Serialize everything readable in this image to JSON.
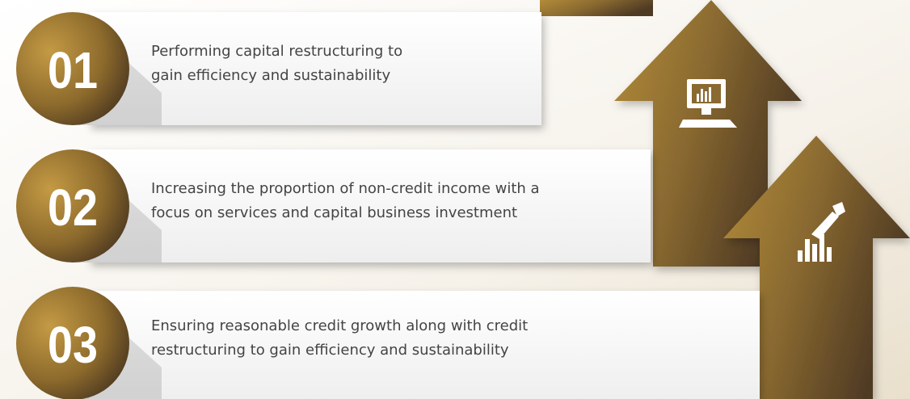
{
  "items": [
    {
      "number": "01",
      "lines": [
        "Performing capital restructuring to",
        "gain efficiency and sustainability"
      ]
    },
    {
      "number": "02",
      "lines": [
        "Increasing the proportion of non-credit income with a",
        "focus on services and capital business investment"
      ]
    },
    {
      "number": "03",
      "lines": [
        "Ensuring reasonable credit growth along with credit",
        "restructuring to gain efficiency and sustainability"
      ]
    }
  ]
}
